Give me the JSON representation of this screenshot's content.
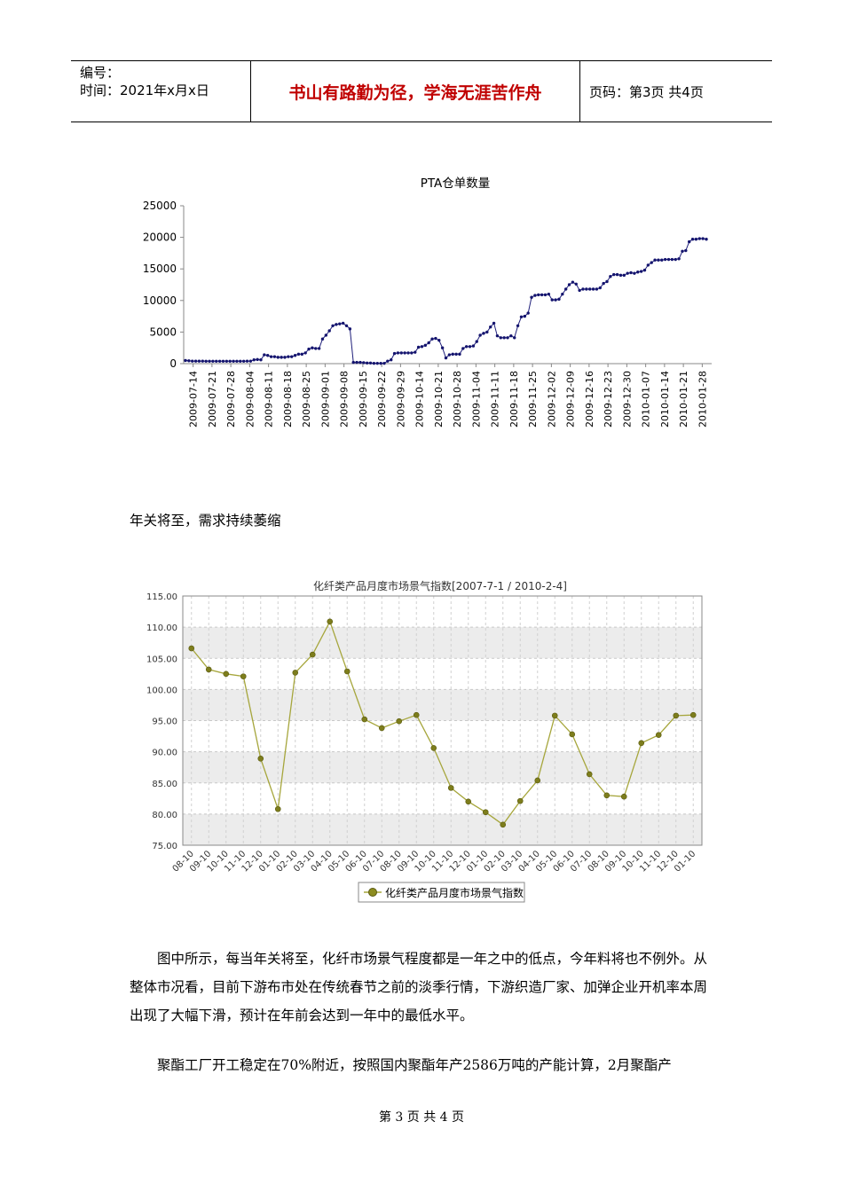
{
  "header": {
    "number_label": "编号：",
    "time_label": "时间：2021年x月x日",
    "motto": "书山有路勤为径，学海无涯苦作舟",
    "page_info": "页码：第3页 共4页"
  },
  "chart_data": [
    {
      "type": "line",
      "title": "PTA仓单数量",
      "ylim": [
        0,
        25000
      ],
      "y_ticks": [
        "0",
        "5000",
        "10000",
        "15000",
        "20000",
        "25000"
      ],
      "x_tick_labels": [
        "2009-07-14",
        "2009-07-21",
        "2009-07-28",
        "2009-08-04",
        "2009-08-11",
        "2009-08-18",
        "2009-08-25",
        "2009-09-01",
        "2009-09-08",
        "2009-09-15",
        "2009-09-22",
        "2009-09-29",
        "2009-10-14",
        "2009-10-21",
        "2009-10-28",
        "2009-11-04",
        "2009-11-11",
        "2009-11-18",
        "2009-11-25",
        "2009-12-02",
        "2009-12-09",
        "2009-12-16",
        "2009-12-23",
        "2009-12-30",
        "2010-01-07",
        "2010-01-14",
        "2010-01-21",
        "2010-01-28"
      ],
      "values": [
        500,
        450,
        400,
        400,
        400,
        400,
        380,
        380,
        380,
        380,
        380,
        380,
        380,
        380,
        380,
        380,
        380,
        380,
        400,
        400,
        600,
        650,
        600,
        1400,
        1300,
        1100,
        1100,
        1000,
        1000,
        1000,
        1100,
        1100,
        1300,
        1500,
        1500,
        1700,
        2300,
        2500,
        2400,
        2400,
        3900,
        4500,
        5200,
        6000,
        6200,
        6300,
        6400,
        6000,
        5500,
        200,
        200,
        200,
        150,
        100,
        100,
        50,
        50,
        50,
        50,
        400,
        600,
        1600,
        1700,
        1700,
        1700,
        1700,
        1700,
        1800,
        2600,
        2700,
        2900,
        3300,
        3900,
        4000,
        3700,
        2500,
        900,
        1400,
        1500,
        1500,
        1500,
        2400,
        2700,
        2700,
        2800,
        3500,
        4500,
        4800,
        5000,
        5800,
        6400,
        4400,
        4100,
        4100,
        4100,
        4400,
        4100,
        6000,
        7400,
        7500,
        8000,
        10500,
        10800,
        10900,
        10900,
        10900,
        11000,
        10100,
        10100,
        10200,
        11000,
        11800,
        12500,
        12900,
        12600,
        11600,
        11800,
        11800,
        11800,
        11800,
        11800,
        12000,
        12700,
        13000,
        13800,
        14100,
        14100,
        14000,
        14000,
        14300,
        14400,
        14300,
        14500,
        14600,
        14800,
        15600,
        16000,
        16400,
        16400,
        16400,
        16500,
        16500,
        16500,
        16500,
        16600,
        17800,
        17900,
        19300,
        19700,
        19700,
        19800,
        19800,
        19700
      ]
    },
    {
      "type": "line",
      "title": "化纤类产品月度市场景气指数[2007-7-1 / 2010-2-4]",
      "ylim": [
        75,
        115
      ],
      "y_ticks": [
        "75.00",
        "80.00",
        "85.00",
        "90.00",
        "95.00",
        "100.00",
        "105.00",
        "110.00",
        "115.00"
      ],
      "categories": [
        "08-10",
        "09-10",
        "10-10",
        "11-10",
        "12-10",
        "01-10",
        "02-10",
        "03-10",
        "04-10",
        "05-10",
        "06-10",
        "07-10",
        "08-10",
        "09-10",
        "10-10",
        "11-10",
        "12-10",
        "01-10",
        "02-10",
        "03-10",
        "04-10",
        "05-10",
        "06-10",
        "07-10",
        "08-10",
        "09-10",
        "10-10",
        "11-10",
        "12-10",
        "01-10"
      ],
      "series": [
        {
          "name": "化纤类产品月度市场景气指数",
          "values": [
            106.6,
            103.2,
            102.5,
            102.1,
            88.9,
            80.8,
            102.7,
            105.6,
            110.9,
            102.9,
            95.2,
            93.8,
            94.9,
            95.9,
            90.6,
            84.2,
            82.0,
            80.3,
            78.3,
            82.1,
            85.4,
            95.8,
            92.8,
            86.4,
            83.0,
            82.8,
            91.4,
            92.7,
            95.8,
            95.9
          ]
        }
      ],
      "accent_color": "#a6a63c"
    }
  ],
  "paragraphs": {
    "p1": "年关将至，需求持续萎缩",
    "p2": "图中所示，每当年关将至，化纤市场景气程度都是一年之中的低点，今年料将也不例外。从整体市况看，目前下游布市处在传统春节之前的淡季行情，下游织造厂家、加弹企业开机率本周出现了大幅下滑，预计在年前会达到一年中的最低水平。",
    "p3": "聚酯工厂开工稳定在70%附近，按照国内聚酯年产2586万吨的产能计算，2月聚酯产"
  },
  "footer": "第 3 页 共 4 页"
}
